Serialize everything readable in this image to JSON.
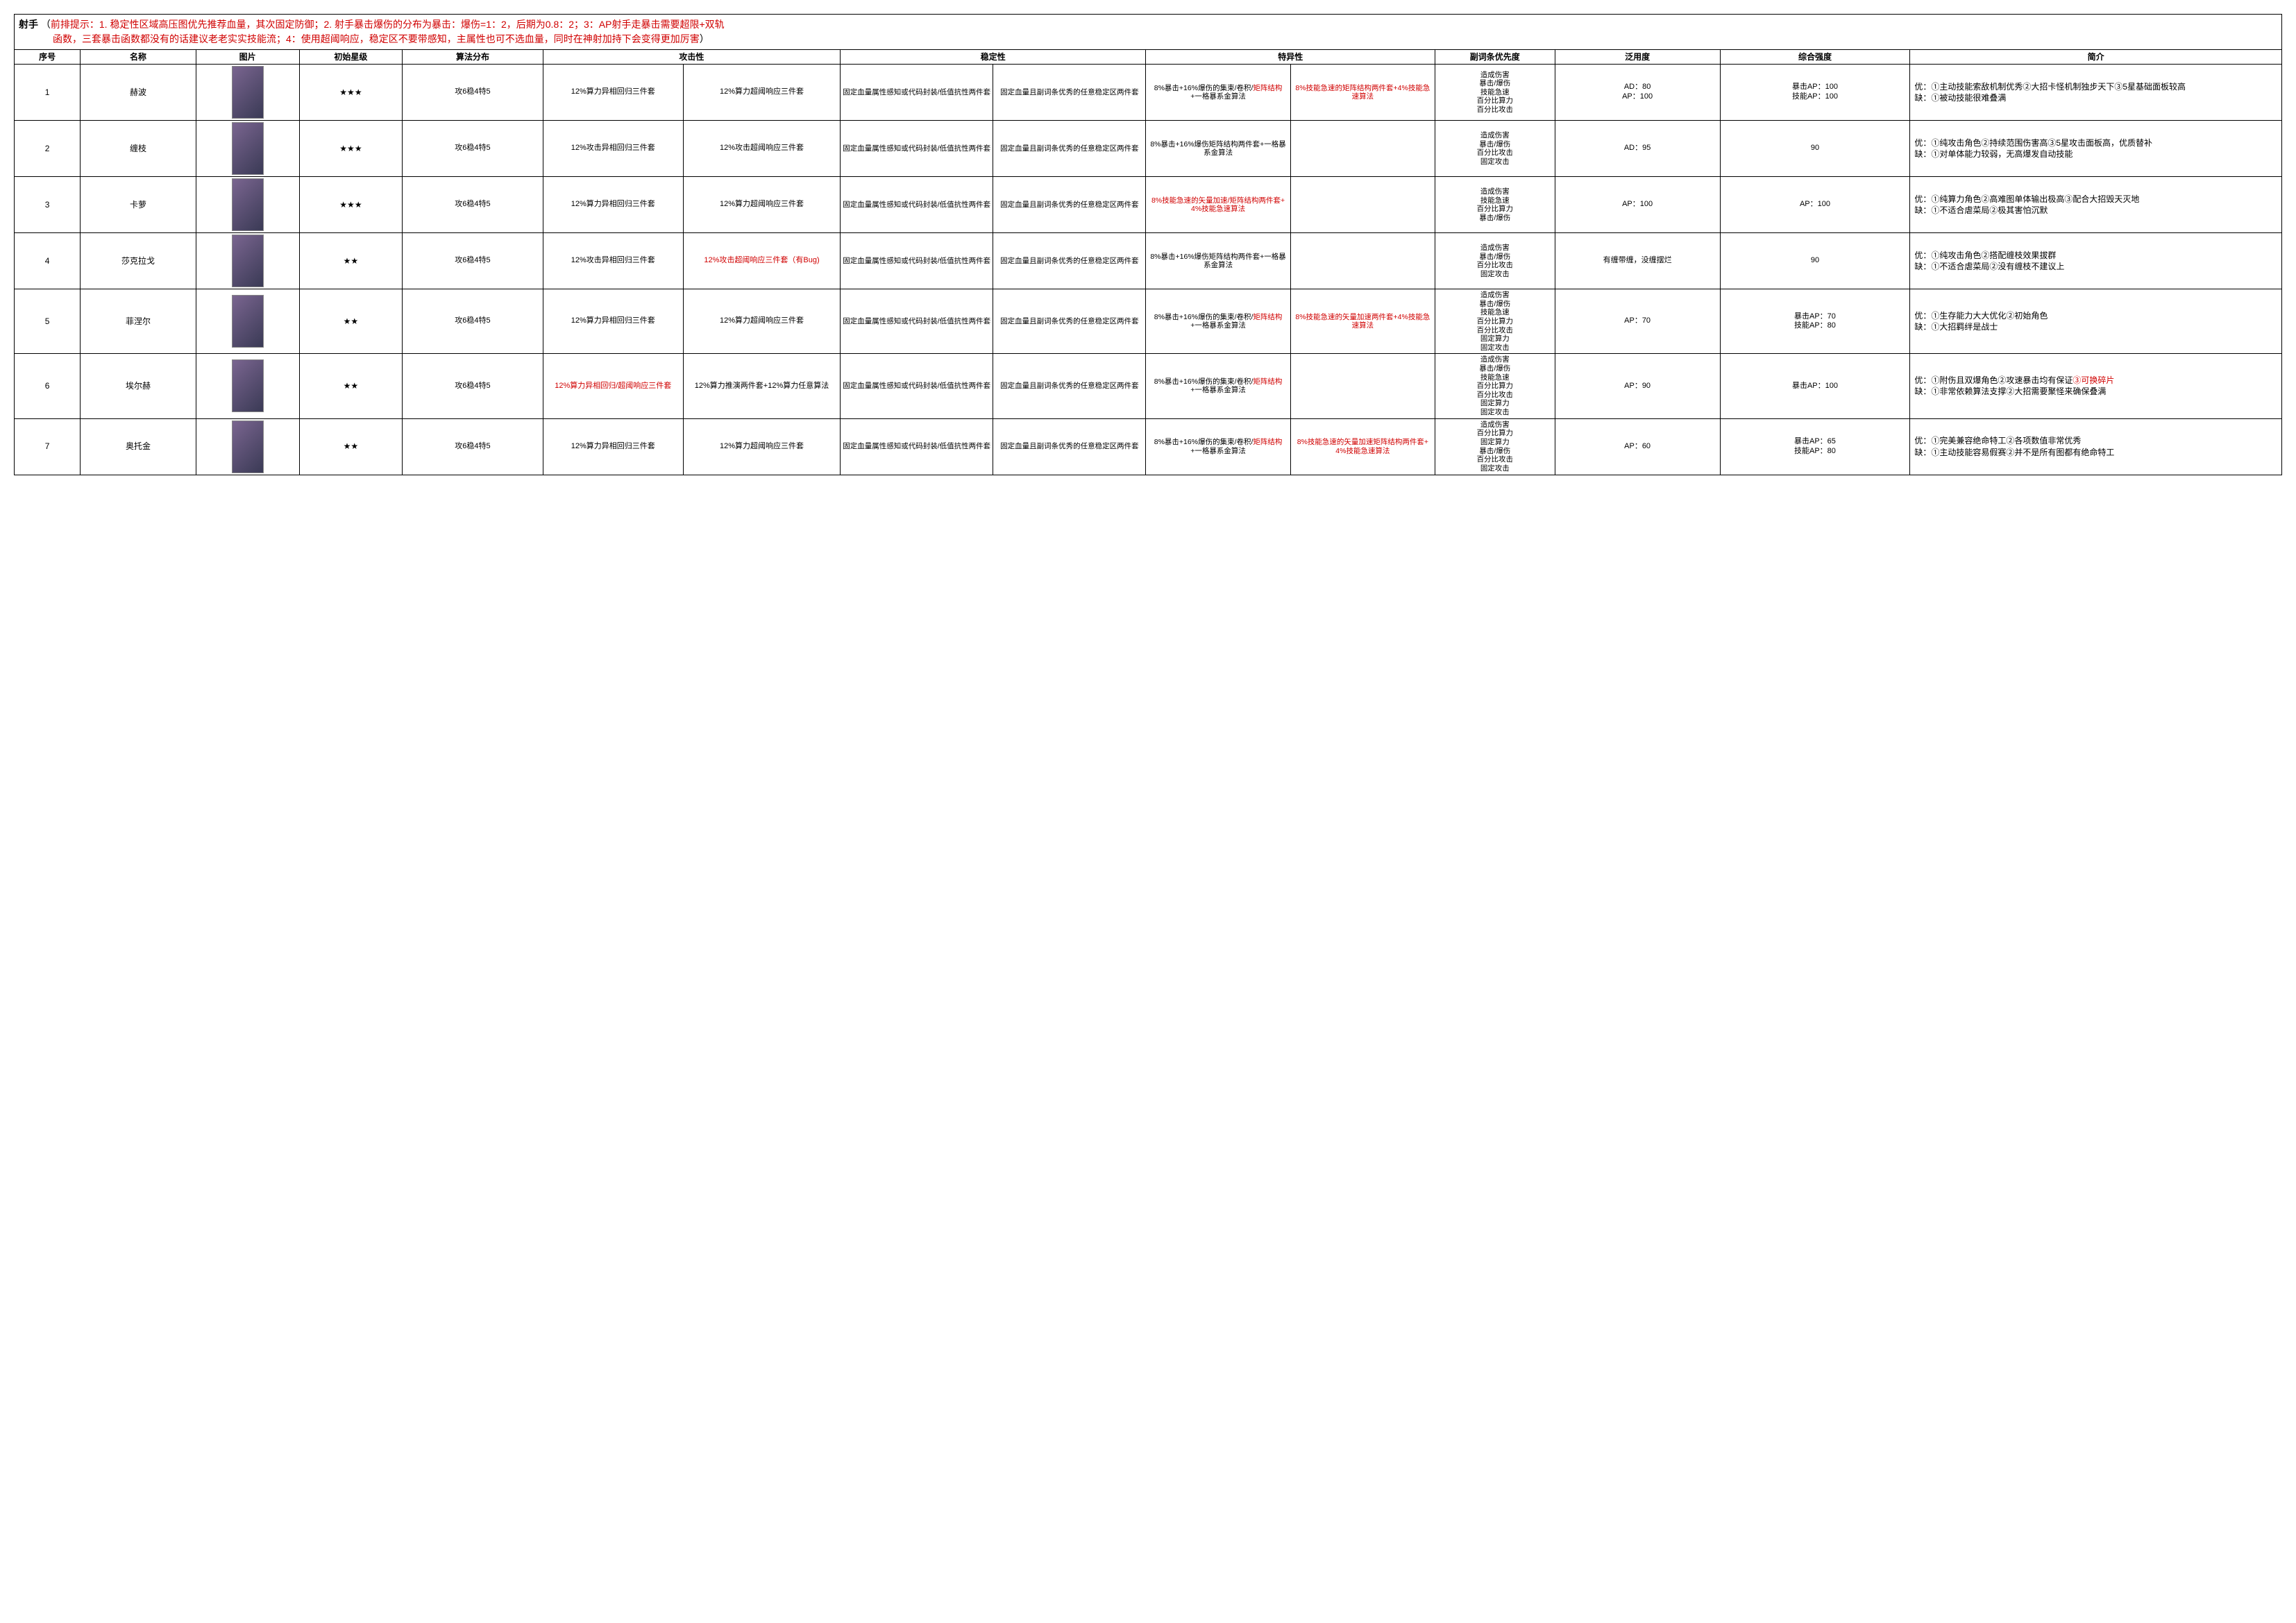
{
  "header": {
    "title": "射手",
    "paren_open": "（",
    "note_label": "前排提示：",
    "note_line1": "1. 稳定性区域高压图优先推荐血量，其次固定防御；2. 射手暴击爆伤的分布为暴击：爆伤=1：2，后期为0.8：2；3：AP射手走暴击需要超限+双轨",
    "note_line2": "函数，三套暴击函数都没有的话建议老老实实技能流；4：使用超阈响应，稳定区不要带感知，主属性也可不选血量，同时在神射加持下会变得更加厉害",
    "paren_close": "）"
  },
  "columns": [
    "序号",
    "名称",
    "图片",
    "初始星级",
    "算法分布",
    "攻击性",
    "",
    "稳定性",
    "",
    "特异性",
    "",
    "副词条优先度",
    "泛用度",
    "综合强度",
    "简介"
  ],
  "rows": [
    {
      "idx": "1",
      "name": "赫波",
      "stars": "★★★",
      "dist": "攻6稳4特5",
      "atk1": "12%算力异相回归三件套",
      "atk2": "12%算力超阈响应三件套",
      "stab1": "固定血量属性感知或代码封装/低值抗性两件套",
      "stab2": "固定血量且副词条优秀的任意稳定区两件套",
      "spec1_pre": "8%暴击+16%爆伤的集束/卷积/",
      "spec1_red": "矩阵结构",
      "spec1_post": "+一格暴系金算法",
      "spec2_red": "8%技能急速的矩阵结构两件套+4%技能急速算法",
      "spec2_plain": "",
      "prio": "造成伤害\n暴击/爆伤\n技能急速\n百分比算力\n百分比攻击",
      "wide": "AD：80\nAP：100",
      "str": "暴击AP：100\n技能AP：100",
      "intro": "优：①主动技能索敌机制优秀②大招卡怪机制独步天下③5星基础面板较高\n缺：①被动技能很难叠满"
    },
    {
      "idx": "2",
      "name": "缠枝",
      "stars": "★★★",
      "dist": "攻6稳4特5",
      "atk1": "12%攻击异相回归三件套",
      "atk2": "12%攻击超阈响应三件套",
      "stab1": "固定血量属性感知或代码封装/低值抗性两件套",
      "stab2": "固定血量且副词条优秀的任意稳定区两件套",
      "spec1_pre": "8%暴击+16%爆伤矩阵结构两件套+一格暴系金算法",
      "spec1_red": "",
      "spec1_post": "",
      "spec2_red": "",
      "spec2_plain": "",
      "prio": "造成伤害\n暴击/爆伤\n百分比攻击\n固定攻击",
      "wide": "AD：95",
      "str": "90",
      "intro": "优：①纯攻击角色②持续范围伤害高③5星攻击面板高，优质替补\n缺：①对单体能力较弱，无高爆发自动技能"
    },
    {
      "idx": "3",
      "name": "卡萝",
      "stars": "★★★",
      "dist": "攻6稳4特5",
      "atk1": "12%算力异相回归三件套",
      "atk2": "12%算力超阈响应三件套",
      "stab1": "固定血量属性感知或代码封装/低值抗性两件套",
      "stab2": "固定血量且副词条优秀的任意稳定区两件套",
      "spec1_pre": "",
      "spec1_red": "8%技能急速的矢量加速/矩阵结构两件套+4%技能急速算法",
      "spec1_post": "",
      "spec2_red": "",
      "spec2_plain": "",
      "prio": "造成伤害\n技能急速\n百分比算力\n暴击/爆伤",
      "wide": "AP：100",
      "str": "AP：100",
      "intro": "优：①纯算力角色②高难图单体输出极高③配合大招毁天灭地\n缺：①不适合虐菜局②极其害怕沉默"
    },
    {
      "idx": "4",
      "name": "莎克拉戈",
      "stars": "★★",
      "dist": "攻6稳4特5",
      "atk1": "12%攻击异相回归三件套",
      "atk2_red": "12%攻击超阈响应三件套（有Bug)",
      "atk2": "",
      "stab1": "固定血量属性感知或代码封装/低值抗性两件套",
      "stab2": "固定血量且副词条优秀的任意稳定区两件套",
      "spec1_pre": "8%暴击+16%爆伤矩阵结构两件套+一格暴系金算法",
      "spec1_red": "",
      "spec1_post": "",
      "spec2_red": "",
      "spec2_plain": "",
      "prio": "造成伤害\n暴击/爆伤\n百分比攻击\n固定攻击",
      "wide": "有缠带缠，没缠摆烂",
      "str": "90",
      "intro": "优：①纯攻击角色②搭配缠枝效果拔群\n缺：①不适合虐菜局②没有缠枝不建议上"
    },
    {
      "idx": "5",
      "name": "菲涅尔",
      "stars": "★★",
      "dist": "攻6稳4特5",
      "atk1": "12%算力异相回归三件套",
      "atk2": "12%算力超阈响应三件套",
      "stab1": "固定血量属性感知或代码封装/低值抗性两件套",
      "stab2": "固定血量且副词条优秀的任意稳定区两件套",
      "spec1_pre": "8%暴击+16%爆伤的集束/卷积/",
      "spec1_red": "矩阵结构",
      "spec1_post": "+一格暴系金算法",
      "spec2_red": "8%技能急速的矢量加速两件套+4%技能急速算法",
      "spec2_plain": "",
      "prio": "造成伤害\n暴击/爆伤\n技能急速\n百分比算力\n百分比攻击\n固定算力\n固定攻击",
      "wide": "AP：70",
      "str": "暴击AP：70\n技能AP：80",
      "intro": "优：①生存能力大大优化②初始角色\n缺：①大招羁绊是战士"
    },
    {
      "idx": "6",
      "name": "埃尔赫",
      "stars": "★★",
      "dist": "攻6稳4特5",
      "atk1_red": "12%算力异相回归/超阈响应三件套",
      "atk1": "",
      "atk2": "12%算力推演两件套+12%算力任意算法",
      "stab1": "固定血量属性感知或代码封装/低值抗性两件套",
      "stab2": "固定血量且副词条优秀的任意稳定区两件套",
      "spec1_pre": "8%暴击+16%爆伤的集束/卷积/",
      "spec1_red": "矩阵结构",
      "spec1_post": "+一格暴系金算法",
      "spec2_red": "",
      "spec2_plain": "",
      "prio": "造成伤害\n暴击/爆伤\n技能急速\n百分比算力\n百分比攻击\n固定算力\n固定攻击",
      "wide": "AP：90",
      "str": "暴击AP：100",
      "intro_pre": "优：①附伤且双爆角色②攻速暴击均有保证",
      "intro_red": "③可换碎片",
      "intro_post": "\n缺：①非常依赖算法支撑②大招需要聚怪来确保叠满"
    },
    {
      "idx": "7",
      "name": "奥托金",
      "stars": "★★",
      "dist": "攻6稳4特5",
      "atk1": "12%算力异相回归三件套",
      "atk2": "12%算力超阈响应三件套",
      "stab1": "固定血量属性感知或代码封装/低值抗性两件套",
      "stab2": "固定血量且副词条优秀的任意稳定区两件套",
      "spec1_pre": "8%暴击+16%爆伤的集束/卷积/",
      "spec1_red": "矩阵结构",
      "spec1_post": "+一格暴系金算法",
      "spec2_red": "8%技能急速的矢量加速矩阵结构两件套+4%技能急速算法",
      "spec2_plain": "",
      "prio": "造成伤害\n百分比算力\n固定算力\n暴击/爆伤\n百分比攻击\n固定攻击",
      "wide": "AP：60",
      "str": "暴击AP：65\n技能AP：80",
      "intro": "优：①完美兼容绝命特工②各项数值非常优秀\n缺：①主动技能容易假赛②并不是所有图都有绝命特工"
    }
  ]
}
